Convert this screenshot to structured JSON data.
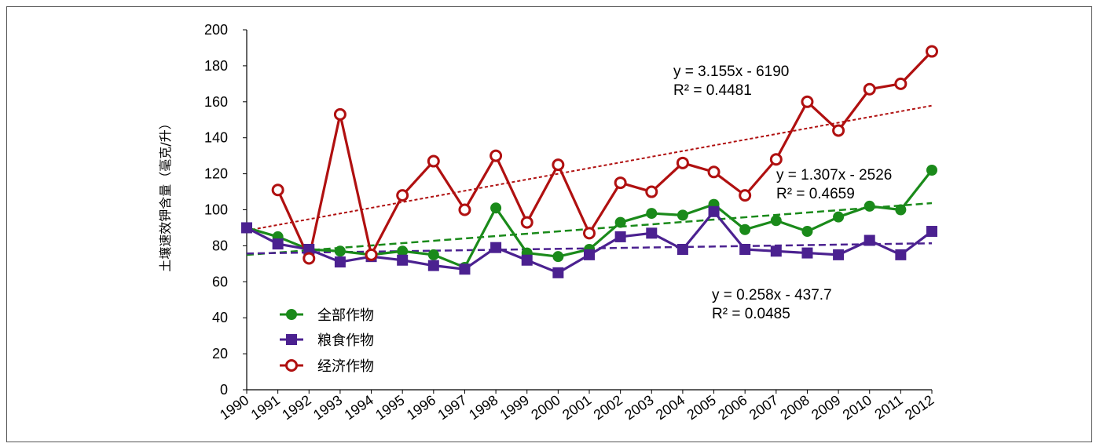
{
  "chart_data": {
    "type": "line",
    "title": "",
    "xlabel": "",
    "ylabel": "土壤速效钾含量（毫克/升）",
    "ylim": [
      0,
      200
    ],
    "yticks": [
      0,
      20,
      40,
      60,
      80,
      100,
      120,
      140,
      160,
      180,
      200
    ],
    "grid": false,
    "legend_position": "bottom-left",
    "categories": [
      "1990",
      "1991",
      "1992",
      "1993",
      "1994",
      "1995",
      "1996",
      "1997",
      "1998",
      "1999",
      "2000",
      "2001",
      "2002",
      "2003",
      "2004",
      "2005",
      "2006",
      "2007",
      "2008",
      "2009",
      "2010",
      "2011",
      "2012"
    ],
    "series": [
      {
        "name": "全部作物",
        "color": "#1a8a1a",
        "marker": "filled-circle",
        "values": [
          90,
          85,
          78,
          77,
          75,
          77,
          75,
          68,
          101,
          76,
          74,
          78,
          93,
          98,
          97,
          103,
          89,
          94,
          88,
          96,
          102,
          100,
          122
        ],
        "trend": {
          "slope": 1.307,
          "intercept": -2526,
          "equation": "y = 1.307x - 2526",
          "r2": "R² = 0.4659",
          "style": "dashed"
        }
      },
      {
        "name": "粮食作物",
        "color": "#4b2190",
        "marker": "square",
        "values": [
          90,
          81,
          78,
          71,
          74,
          72,
          69,
          67,
          79,
          72,
          65,
          75,
          85,
          87,
          78,
          99,
          78,
          77,
          76,
          75,
          83,
          75,
          88
        ],
        "trend": {
          "slope": 0.258,
          "intercept": -437.7,
          "equation": "y = 0.258x - 437.7",
          "r2": "R² = 0.0485",
          "style": "dashed"
        }
      },
      {
        "name": "经济作物",
        "color": "#b01010",
        "marker": "open-circle",
        "values": [
          null,
          111,
          73,
          153,
          75,
          108,
          127,
          100,
          130,
          93,
          125,
          87,
          115,
          110,
          126,
          121,
          108,
          128,
          160,
          144,
          167,
          170,
          188
        ],
        "trend": {
          "slope": 3.155,
          "intercept": -6190,
          "equation": "y = 3.155x - 6190",
          "r2": "R² = 0.4481",
          "style": "dotted"
        }
      }
    ]
  }
}
